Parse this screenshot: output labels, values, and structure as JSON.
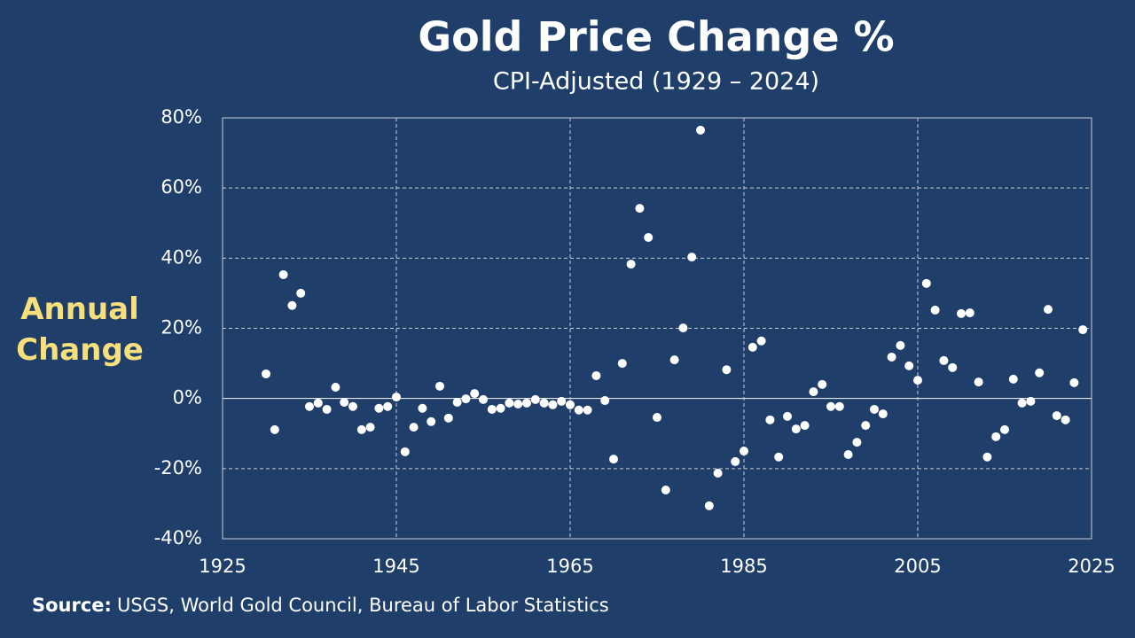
{
  "chart_data": {
    "type": "scatter",
    "title": "Gold Price Change %",
    "subtitle": "CPI-Adjusted (1929 – 2024)",
    "y_label": "Annual Change",
    "source_label": "Source:",
    "source_text": "USGS, World Gold Council, Bureau of Labor Statistics",
    "color": "#ffffff",
    "grid": true,
    "xlim": [
      1925,
      2025
    ],
    "xticks": [
      1925,
      1945,
      1965,
      1985,
      2005,
      2025
    ],
    "ylim": [
      -40,
      80
    ],
    "yticks": [
      {
        "value": -40,
        "label": "-40%"
      },
      {
        "value": -20,
        "label": "-20%"
      },
      {
        "value": 0,
        "label": "0%"
      },
      {
        "value": 20,
        "label": "20%"
      },
      {
        "value": 40,
        "label": "40%"
      },
      {
        "value": 60,
        "label": "60%"
      },
      {
        "value": 80,
        "label": "80%"
      }
    ],
    "x": [
      1930,
      1931,
      1932,
      1933,
      1934,
      1935,
      1936,
      1937,
      1938,
      1939,
      1940,
      1941,
      1942,
      1943,
      1944,
      1945,
      1946,
      1947,
      1948,
      1949,
      1950,
      1951,
      1952,
      1953,
      1954,
      1955,
      1956,
      1957,
      1958,
      1959,
      1960,
      1961,
      1962,
      1963,
      1964,
      1965,
      1966,
      1967,
      1968,
      1969,
      1970,
      1971,
      1972,
      1973,
      1974,
      1975,
      1976,
      1977,
      1978,
      1979,
      1980,
      1981,
      1982,
      1983,
      1984,
      1985,
      1986,
      1987,
      1988,
      1989,
      1990,
      1991,
      1992,
      1993,
      1994,
      1995,
      1996,
      1997,
      1998,
      1999,
      2000,
      2001,
      2002,
      2003,
      2004,
      2005,
      2006,
      2007,
      2008,
      2009,
      2010,
      2011,
      2012,
      2013,
      2014,
      2015,
      2016,
      2017,
      2018,
      2019,
      2020,
      2021,
      2022,
      2023,
      2024
    ],
    "values": [
      7.0,
      -8.9,
      35.3,
      26.5,
      30.0,
      -2.3,
      -1.3,
      -3.1,
      3.2,
      -1.1,
      -2.3,
      -8.9,
      -8.2,
      -2.8,
      -2.3,
      0.4,
      -15.2,
      -8.2,
      -2.8,
      -6.6,
      3.5,
      -5.6,
      -1.1,
      -0.1,
      1.4,
      -0.3,
      -3.1,
      -2.8,
      -1.3,
      -1.6,
      -1.3,
      -0.3,
      -1.3,
      -1.8,
      -0.8,
      -1.8,
      -3.3,
      -3.3,
      6.5,
      -0.6,
      -17.3,
      10.0,
      38.3,
      54.2,
      45.9,
      -5.4,
      -26.1,
      11.0,
      20.1,
      40.3,
      76.5,
      -30.6,
      -21.3,
      8.2,
      -18.0,
      -15.0,
      14.6,
      16.4,
      -6.1,
      -16.7,
      -5.1,
      -8.7,
      -7.7,
      1.9,
      4.0,
      -2.3,
      -2.3,
      -16.0,
      -12.5,
      -7.7,
      -3.1,
      -4.4,
      11.8,
      15.1,
      9.3,
      5.2,
      32.8,
      25.2,
      10.8,
      8.8,
      24.2,
      24.4,
      4.7,
      -16.7,
      -10.9,
      -8.9,
      5.5,
      -1.3,
      -0.8,
      7.3,
      25.4,
      -4.9,
      -6.1,
      4.5,
      19.6
    ]
  }
}
